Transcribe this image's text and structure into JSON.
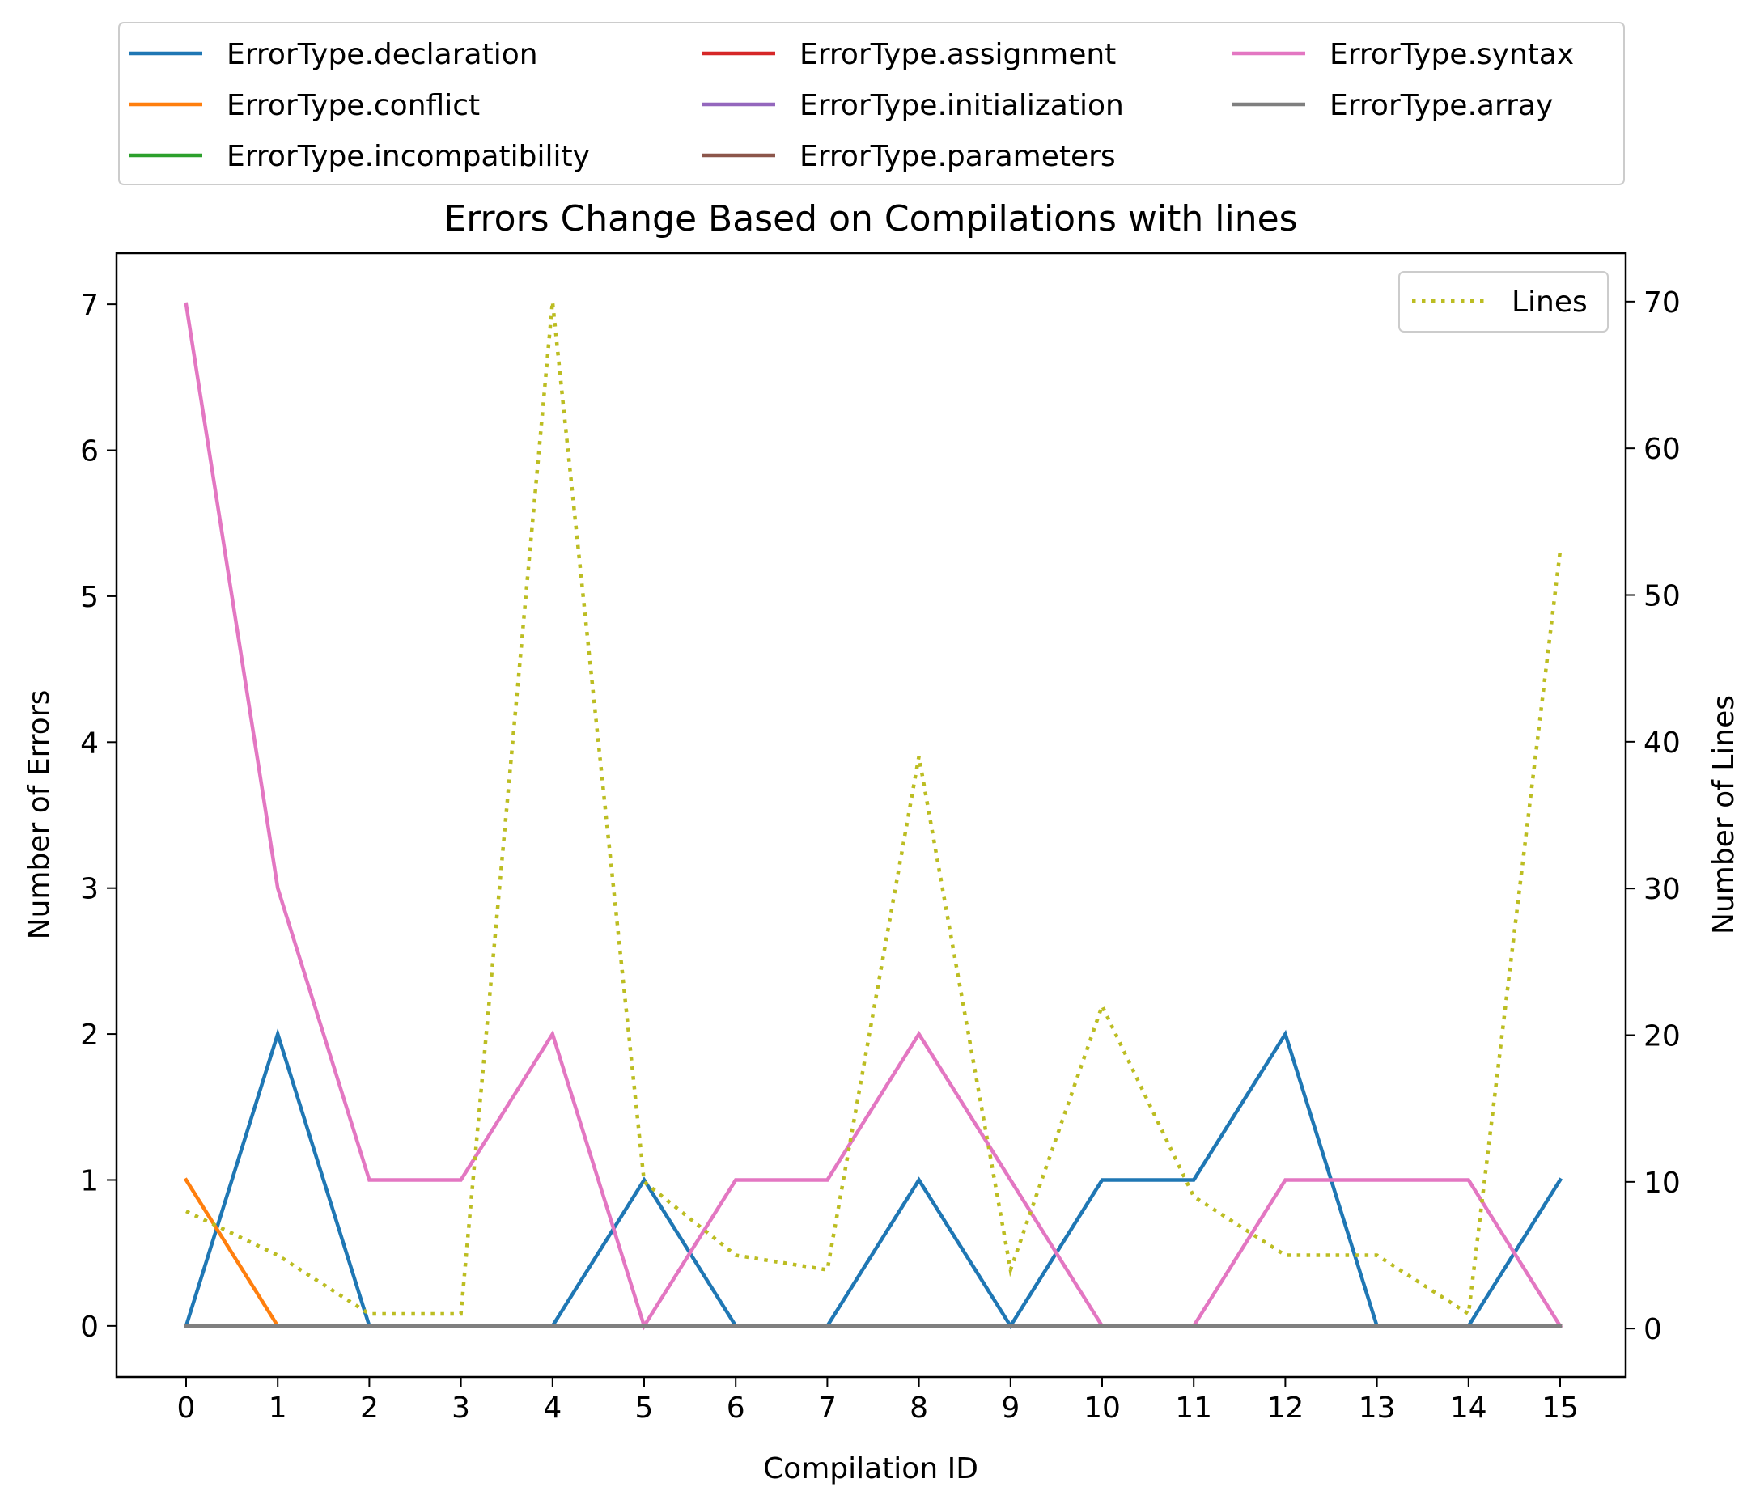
{
  "chart_data": {
    "type": "line",
    "title": "Errors Change Based on Compilations with lines",
    "xlabel": "Compilation ID",
    "ylabel": "Number of Errors",
    "y2label": "Number of Lines",
    "x": [
      0,
      1,
      2,
      3,
      4,
      5,
      6,
      7,
      8,
      9,
      10,
      11,
      12,
      13,
      14,
      15
    ],
    "xticks": [
      "0",
      "1",
      "2",
      "3",
      "4",
      "5",
      "6",
      "7",
      "8",
      "9",
      "10",
      "11",
      "12",
      "13",
      "14",
      "15"
    ],
    "ylim": [
      -0.35,
      7.35
    ],
    "yticks": [
      "0",
      "1",
      "2",
      "3",
      "4",
      "5",
      "6",
      "7"
    ],
    "y2lim": [
      -3.3,
      73.3
    ],
    "y2ticks": [
      "0",
      "10",
      "20",
      "30",
      "40",
      "50",
      "60",
      "70"
    ],
    "legend_position": "top, outside plot, 3 columns",
    "lines_legend_position": "top-right",
    "series": [
      {
        "name": "ErrorType.declaration",
        "color": "#1f77b4",
        "values": [
          0,
          2,
          0,
          0,
          0,
          1,
          0,
          0,
          1,
          0,
          1,
          1,
          2,
          0,
          0,
          1
        ]
      },
      {
        "name": "ErrorType.conflict",
        "color": "#ff7f0e",
        "values": [
          1,
          0,
          0,
          0,
          0,
          0,
          0,
          0,
          0,
          0,
          0,
          0,
          0,
          0,
          0,
          0
        ]
      },
      {
        "name": "ErrorType.incompatibility",
        "color": "#2ca02c",
        "values": [
          0,
          0,
          0,
          0,
          0,
          0,
          0,
          0,
          0,
          0,
          0,
          0,
          0,
          0,
          0,
          0
        ]
      },
      {
        "name": "ErrorType.assignment",
        "color": "#d62728",
        "values": [
          0,
          0,
          0,
          0,
          0,
          0,
          0,
          0,
          0,
          0,
          0,
          0,
          0,
          0,
          0,
          0
        ]
      },
      {
        "name": "ErrorType.initialization",
        "color": "#9467bd",
        "values": [
          0,
          0,
          0,
          0,
          0,
          0,
          0,
          0,
          0,
          0,
          0,
          0,
          0,
          0,
          0,
          0
        ]
      },
      {
        "name": "ErrorType.parameters",
        "color": "#8c564b",
        "values": [
          0,
          0,
          0,
          0,
          0,
          0,
          0,
          0,
          0,
          0,
          0,
          0,
          0,
          0,
          0,
          0
        ]
      },
      {
        "name": "ErrorType.syntax",
        "color": "#e377c2",
        "values": [
          7,
          3,
          1,
          1,
          2,
          0,
          1,
          1,
          2,
          1,
          0,
          0,
          1,
          1,
          1,
          0
        ]
      },
      {
        "name": "ErrorType.array",
        "color": "#7f7f7f",
        "values": [
          0,
          0,
          0,
          0,
          0,
          0,
          0,
          0,
          0,
          0,
          0,
          0,
          0,
          0,
          0,
          0
        ]
      }
    ],
    "lines_series": {
      "name": "Lines",
      "color": "#bcbd22",
      "axis": "right",
      "style": "dotted",
      "values": [
        8,
        5,
        1,
        1,
        70,
        10,
        5,
        4,
        39,
        4,
        22,
        9,
        5,
        5,
        1,
        53
      ]
    }
  }
}
